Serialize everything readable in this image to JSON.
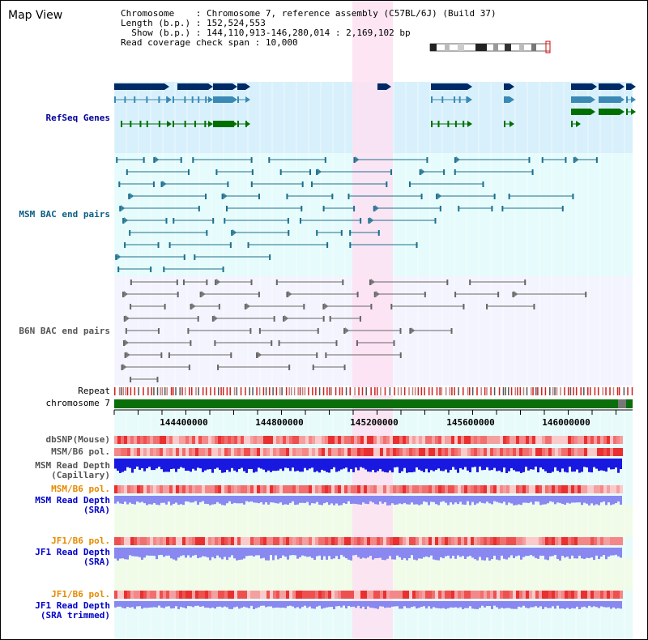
{
  "app": {
    "title": "Map View"
  },
  "info": {
    "chromosome_label": "Chromosome",
    "chromosome_value": "Chromosome 7, reference assembly (C57BL/6J) (Build 37)",
    "length_label": "Length (b.p.)",
    "length_value": "152,524,553",
    "show_label": "Show (b.p.)",
    "show_value": "144,110,913-146,280,014 : 2,169,102 bp",
    "span_label": "Read coverage check span",
    "span_value": "10,000"
  },
  "tracks": {
    "refseq": "RefSeq Genes",
    "msm_bac": "MSM BAC end pairs",
    "b6n_bac": "B6N BAC end pairs",
    "repeat": "Repeat",
    "chromosome": "chromosome 7",
    "dbsnp": "dbSNP(Mouse)",
    "msm_b6_pol": "MSM/B6 pol.",
    "msm_depth_cap_1": "MSM Read Depth",
    "msm_depth_cap_2": "(Capillary)",
    "msm_b6_pol2": "MSM/B6 pol.",
    "msm_depth_sra_1": "MSM Read Depth",
    "msm_depth_sra_2": "(SRA)",
    "jf1_b6_pol": "JF1/B6 pol.",
    "jf1_depth_sra_1": "JF1 Read Depth",
    "jf1_depth_sra_2": "(SRA)",
    "jf1_b6_pol2": "JF1/B6 pol.",
    "jf1_depth_trim_1": "JF1 Read Depth",
    "jf1_depth_trim_2": "(SRA trimmed)"
  },
  "axis": {
    "ticks": [
      "144400000",
      "144800000",
      "145200000",
      "145600000",
      "146000000"
    ]
  },
  "colors": {
    "refseq_bg": "#d8f0fb",
    "bac_bg": "#e6fbfb",
    "b6n_bg": "#f4f4ff",
    "highlight": "#fde0f2",
    "navy": "#002a66",
    "steel": "#3a8ab5",
    "green": "#007000",
    "chrom_green": "#0a6e0a",
    "pol_red": "#ee3030",
    "depth_blue": "#1818e0",
    "depth_light": "#8888f0"
  }
}
